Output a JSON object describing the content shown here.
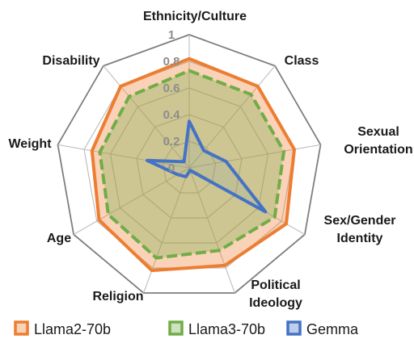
{
  "chart_data": {
    "type": "radar",
    "axes": [
      "Ethnicity/Culture",
      "Class",
      "Sexual Orientation",
      "Sex/Gender Identity",
      "Political Ideology",
      "Religion",
      "Age",
      "Weight",
      "Disability"
    ],
    "axis_label_lines": [
      [
        "Ethnicity/Culture"
      ],
      [
        "Class"
      ],
      [
        "Sexual",
        "Orientation"
      ],
      [
        "Sex/Gender",
        "Identity"
      ],
      [
        "Political",
        "Ideology"
      ],
      [
        "Religion"
      ],
      [
        "Age"
      ],
      [
        "Weight"
      ],
      [
        "Disability"
      ]
    ],
    "range": [
      0,
      1
    ],
    "ticks": [
      "0",
      "0.2",
      "0.4",
      "0.6",
      "0.8",
      "1"
    ],
    "tick_values": [
      0,
      0.2,
      0.4,
      0.6,
      0.8,
      1
    ],
    "series": [
      {
        "name": "Llama2-70b",
        "values": [
          0.82,
          0.8,
          0.8,
          0.84,
          0.78,
          0.82,
          0.78,
          0.74,
          0.8
        ],
        "color": "#ED7D31"
      },
      {
        "name": "Llama3-70b",
        "values": [
          0.73,
          0.72,
          0.72,
          0.74,
          0.66,
          0.72,
          0.7,
          0.68,
          0.7
        ],
        "color": "#70AD47"
      },
      {
        "name": "Gemma",
        "values": [
          0.35,
          0.17,
          0.28,
          0.66,
          0.02,
          0.07,
          0.1,
          0.32,
          0.06
        ],
        "color": "#4472C4"
      }
    ],
    "legend": {
      "position": "bottom"
    }
  }
}
